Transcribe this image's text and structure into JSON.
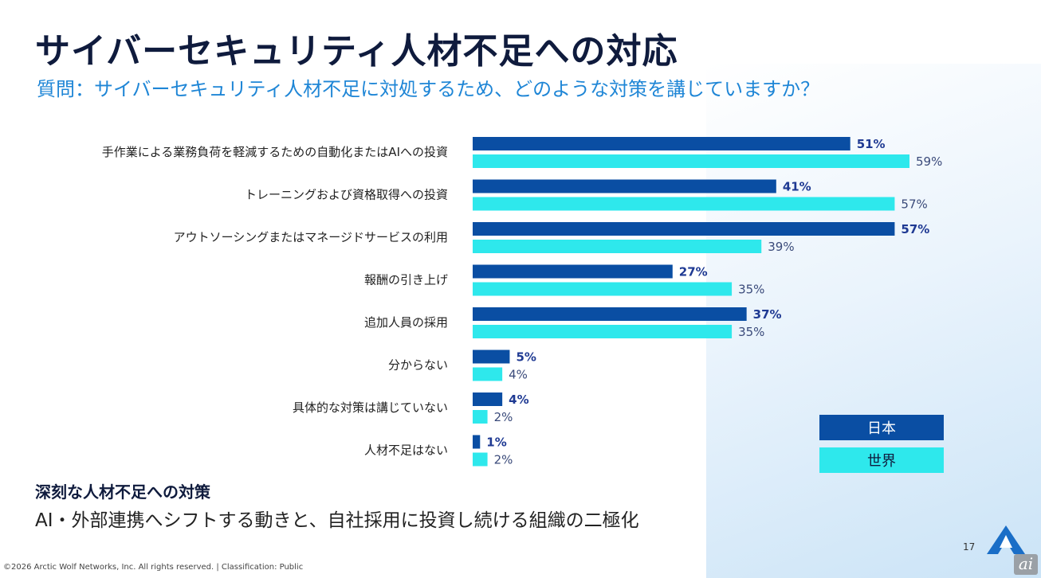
{
  "title": "サイバーセキュリティ人材不足への対応",
  "subtitle": "質問：サイバーセキュリティ人材不足に対処するため、どのような対策を講じていますか？",
  "legend": {
    "japan": "日本",
    "world": "世界"
  },
  "colors": {
    "japan": "#0a4ea3",
    "world": "#2ee8ec",
    "title": "#0f1b3d",
    "subtitle": "#1f86d6"
  },
  "chart_data": {
    "type": "bar",
    "orientation": "horizontal",
    "categories": [
      "手作業による業務負荷を軽減するための自動化またはAIへの投資",
      "トレーニングおよび資格取得への投資",
      "アウトソーシングまたはマネージドサービスの利用",
      "報酬の引き上げ",
      "追加人員の採用",
      "分からない",
      "具体的な対策は講じていない",
      "人材不足はない"
    ],
    "series": [
      {
        "name": "日本",
        "values": [
          51,
          41,
          57,
          27,
          37,
          5,
          4,
          1
        ],
        "labels": [
          "51%",
          "41%",
          "57%",
          "27%",
          "37%",
          "5%",
          "4%",
          "1%"
        ]
      },
      {
        "name": "世界",
        "values": [
          59,
          57,
          39,
          35,
          35,
          4,
          2,
          2
        ],
        "labels": [
          "59%",
          "57%",
          "39%",
          "35%",
          "35%",
          "4%",
          "2%",
          "2%"
        ]
      }
    ],
    "xlim": [
      0,
      59
    ],
    "grid": false,
    "legend_position": "bottom-right"
  },
  "conclusion": {
    "heading": "深刻な人材不足への対策",
    "text": "AI・外部連携へシフトする動きと、自社採用に投資し続ける組織の二極化"
  },
  "page_number": "17",
  "footer": "©2026 Arctic Wolf Networks, Inc. All rights reserved.  |  Classification: Public",
  "watermark": "ai"
}
